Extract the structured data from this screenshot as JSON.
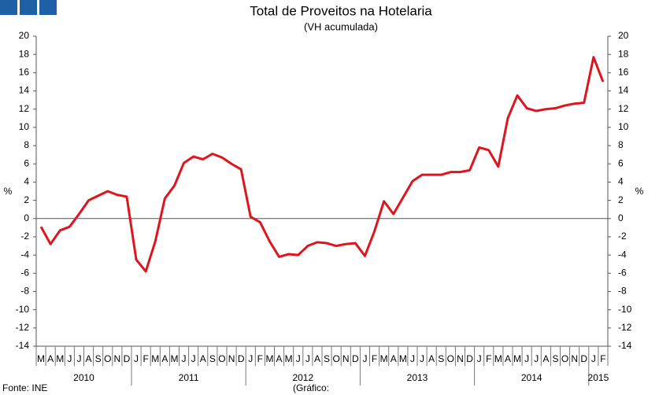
{
  "chart_data": {
    "type": "line",
    "title": "Total de Proveitos na Hotelaria",
    "subtitle": "(VH acumulada)",
    "y_label": "%",
    "y2_label": "%",
    "categories": [
      "M",
      "A",
      "M",
      "J",
      "J",
      "A",
      "S",
      "O",
      "N",
      "D",
      "J",
      "F",
      "M",
      "A",
      "M",
      "J",
      "J",
      "A",
      "S",
      "O",
      "N",
      "D",
      "J",
      "F",
      "M",
      "A",
      "M",
      "J",
      "J",
      "A",
      "S",
      "O",
      "N",
      "D",
      "J",
      "F",
      "M",
      "A",
      "M",
      "J",
      "J",
      "A",
      "S",
      "O",
      "N",
      "D",
      "J",
      "F",
      "M",
      "A",
      "M",
      "J",
      "J",
      "A",
      "S",
      "O",
      "N",
      "D",
      "J",
      "F"
    ],
    "years": [
      "2010",
      "2011",
      "2012",
      "2013",
      "2014",
      "2015"
    ],
    "values": [
      -0.9,
      -2.8,
      -1.3,
      -0.9,
      0.5,
      2.0,
      2.5,
      3.0,
      2.6,
      2.4,
      -4.5,
      -5.8,
      -2.5,
      2.2,
      3.6,
      6.1,
      6.8,
      6.5,
      7.1,
      6.7,
      6.0,
      5.4,
      0.2,
      -0.4,
      -2.5,
      -4.2,
      -3.9,
      -4.0,
      -3.0,
      -2.6,
      -2.7,
      -3.0,
      -2.8,
      -2.7,
      -4.1,
      -1.4,
      1.9,
      0.5,
      2.3,
      4.1,
      4.8,
      4.8,
      4.8,
      5.1,
      5.1,
      5.3,
      7.8,
      7.5,
      5.7,
      11.0,
      13.5,
      12.1,
      11.8,
      12.0,
      12.1,
      12.4,
      12.6,
      12.7,
      17.7,
      15.0
    ],
    "color": "#e0141e",
    "ylim": [
      -14,
      20
    ],
    "yticks": [
      -14,
      -12,
      -10,
      -8,
      -6,
      -4,
      -2,
      0,
      2,
      4,
      6,
      8,
      10,
      12,
      14,
      16,
      18,
      20
    ],
    "y2lim": [
      -14,
      20
    ],
    "y2ticks": [
      -14,
      -12,
      -10,
      -8,
      -6,
      -4,
      -2,
      0,
      2,
      4,
      6,
      8,
      10,
      12,
      14,
      16,
      18,
      20
    ],
    "grid": false,
    "source": "Fonte: INE",
    "note": "(Gráfico:"
  }
}
